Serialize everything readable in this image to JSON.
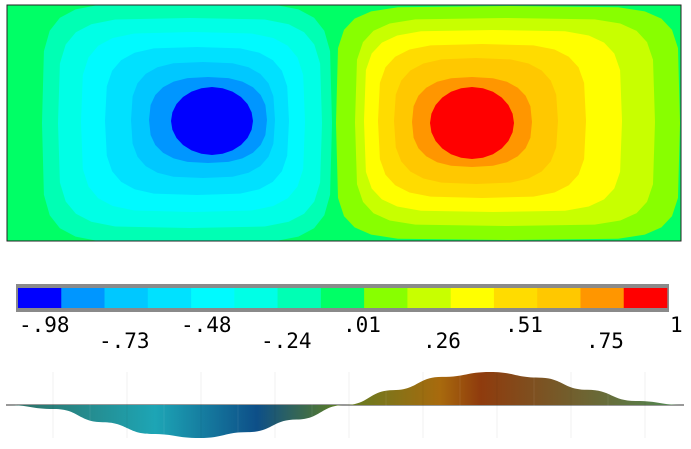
{
  "chart_data": {
    "type": "heatmap",
    "title": "",
    "colorbar": {
      "colors": [
        "#0000ff",
        "#0096ff",
        "#00c8ff",
        "#00e1ff",
        "#00faff",
        "#00ffe6",
        "#00ffb4",
        "#00ff66",
        "#88ff00",
        "#c8ff00",
        "#ffff00",
        "#ffdc00",
        "#ffc800",
        "#ff9600",
        "#ff0000"
      ],
      "labels_top": [
        "-.98",
        "-.48",
        ".01",
        ".51",
        "1"
      ],
      "labels_bottom": [
        "-.73",
        "-.24",
        ".26",
        ".75"
      ],
      "values": [
        -0.98,
        -0.73,
        -0.48,
        -0.24,
        0.01,
        0.26,
        0.51,
        0.75,
        1.0
      ]
    },
    "field": {
      "min_value": -0.98,
      "max_value": 1.0,
      "negative_peak_value": -0.98,
      "positive_peak_value": 1.0
    },
    "profile": {
      "samples": [
        0,
        -0.12,
        -0.52,
        -0.88,
        -1.0,
        -0.82,
        -0.44,
        0,
        0.45,
        0.85,
        1.0,
        0.83,
        0.46,
        0.12,
        0
      ],
      "min": -1.0,
      "max": 1.0
    }
  }
}
